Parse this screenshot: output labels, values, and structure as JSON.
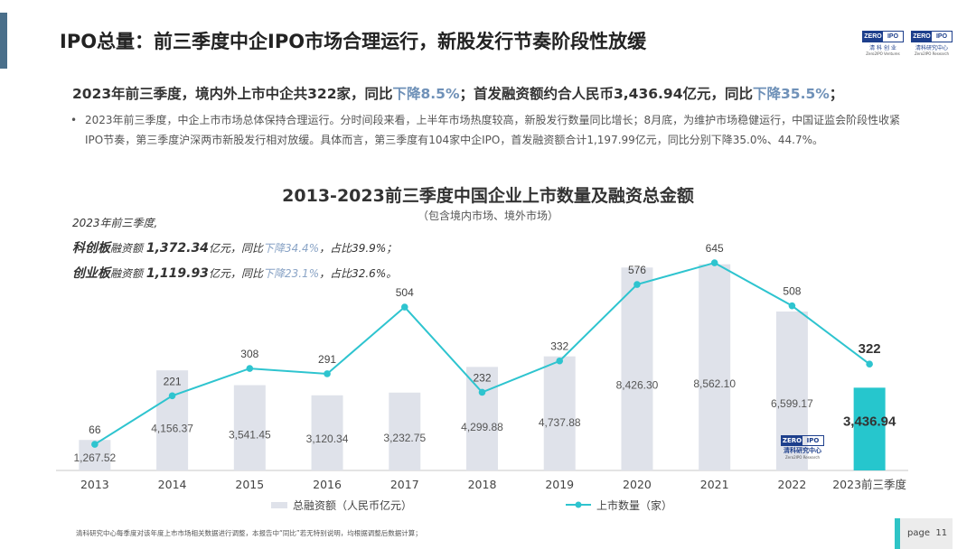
{
  "header": {
    "title": "IPO总量：前三季度中企IPO市场合理运行，新股发行节奏阶段性放缓",
    "logo1": {
      "left": "ZERO",
      "right": "IPO",
      "cn": "清 科 创 业",
      "en": "Zero2IPO Ventures"
    },
    "logo2": {
      "left": "ZERO",
      "right": "IPO",
      "cn": "清科研究中心",
      "en": "Zero2IPO Research"
    }
  },
  "headline": {
    "part1": "2023年前三季度，境内外上市中企共322家，同比",
    "hl1": "下降8.5%",
    "part2": "；首发融资额约合人民币3,436.94亿元，同比",
    "hl2": "下降35.5%",
    "part3": "；"
  },
  "bullet": {
    "dot": "•",
    "text": "2023年前三季度，中企上市市场总体保持合理运行。分时间段来看，上半年市场热度较高，新股发行数量同比增长；8月底，为维护市场稳健运行，中国证监会阶段性收紧IPO节奏，第三季度沪深两市新股发行相对放缓。具体而言，第三季度有104家中企IPO，首发融资额合计1,197.99亿元，同比分别下降35.0%、44.7%。"
  },
  "notes": {
    "line1": "2023年前三季度,",
    "kcb": {
      "name": "科创板",
      "label": "融资额",
      "amount": "1,372.34",
      "unit": "亿元",
      "yoy_prefix": "，同比",
      "yoy": "下降34.4%",
      "share": "，占比39.9%；"
    },
    "cyb": {
      "name": "创业板",
      "label": "融资额",
      "amount": "1,119.93",
      "unit": "亿元",
      "yoy_prefix": "，同比",
      "yoy": "下降23.1%",
      "share": "，占比32.6%。"
    }
  },
  "chart_data": {
    "type": "bar+line",
    "title": "2013-2023前三季度中国企业上市数量及融资总金额",
    "subtitle": "（包含境内市场、境外市场）",
    "categories": [
      "2013",
      "2014",
      "2015",
      "2016",
      "2017",
      "2018",
      "2019",
      "2020",
      "2021",
      "2022",
      "2023前三季度"
    ],
    "series": [
      {
        "name": "总融资额（人民币亿元）",
        "kind": "bar",
        "values": [
          1267.52,
          4156.37,
          3541.45,
          3120.34,
          3232.75,
          4299.88,
          4737.88,
          8426.3,
          8562.1,
          6599.17,
          3436.94
        ],
        "labels": [
          "1,267.52",
          "4,156.37",
          "3,541.45",
          "3,120.34",
          "3,232.75",
          "4,299.88",
          "4,737.88",
          "8,426.30",
          "8,562.10",
          "6,599.17",
          "3,436.94"
        ]
      },
      {
        "name": "上市数量（家）",
        "kind": "line",
        "values": [
          66,
          221,
          308,
          291,
          504,
          232,
          332,
          576,
          645,
          508,
          322
        ]
      }
    ],
    "ylim_bar": [
      0,
      9000
    ],
    "ylim_line": [
      0,
      700
    ],
    "legend_position": "bottom",
    "colors": {
      "bar": "#dfe2ea",
      "bar_highlight": "#26c6cd",
      "line": "#2ec4cf",
      "axis": "#c8c8c8"
    }
  },
  "watermark": {
    "left": "ZERO",
    "right": "IPO",
    "cn": "清科研究中心",
    "en": "Zero2IPO Research"
  },
  "footnote": "清科研究中心每季度对该年度上市市场相关数据进行调整，本报告中“同比”若无特别说明，均根据调整后数据计算；",
  "page": {
    "label": "page",
    "number": "11"
  }
}
